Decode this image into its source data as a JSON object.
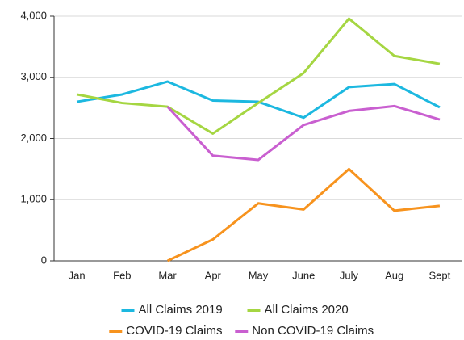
{
  "chart_data": {
    "type": "line",
    "categories": [
      "Jan",
      "Feb",
      "Mar",
      "Apr",
      "May",
      "June",
      "July",
      "Aug",
      "Sept"
    ],
    "series": [
      {
        "name": "All Claims 2019",
        "color": "#1cb8e0",
        "values": [
          2600,
          2720,
          2930,
          2620,
          2600,
          2340,
          2840,
          2890,
          2510
        ]
      },
      {
        "name": "All Claims 2020",
        "color": "#a5d642",
        "values": [
          2720,
          2580,
          2520,
          2080,
          2580,
          3070,
          3960,
          3350,
          3220
        ]
      },
      {
        "name": "COVID-19 Claims",
        "color": "#f7931e",
        "values": [
          null,
          null,
          0,
          350,
          940,
          840,
          1500,
          820,
          900
        ]
      },
      {
        "name": "Non COVID-19 Claims",
        "color": "#c95fd0",
        "values": [
          null,
          null,
          2520,
          1720,
          1650,
          2220,
          2450,
          2530,
          2310
        ]
      }
    ],
    "ylim": [
      0,
      4000
    ],
    "yticks": [
      0,
      {
        "value": 1000,
        "label": "1,000"
      },
      {
        "value": 2000,
        "label": "2,000"
      },
      {
        "value": 3000,
        "label": "3,000"
      },
      {
        "value": 4000,
        "label": "4,000"
      }
    ],
    "grid": true
  }
}
